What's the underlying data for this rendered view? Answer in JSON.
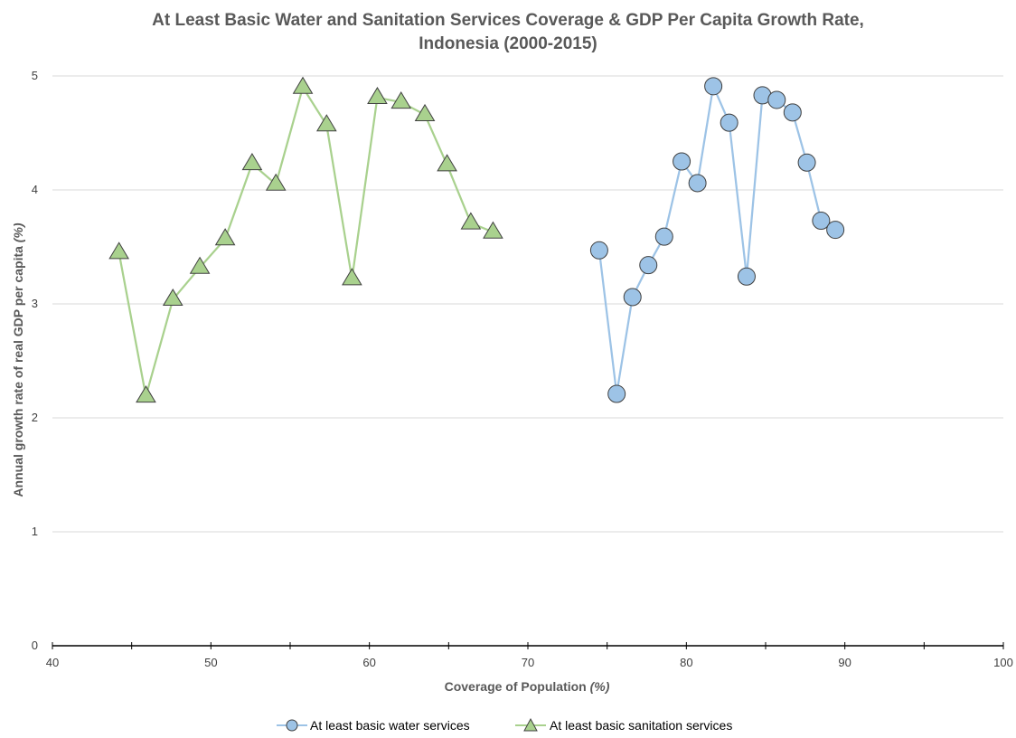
{
  "chart_data": {
    "type": "scatter",
    "title_lines": [
      "At Least Basic Water and Sanitation Services Coverage & GDP Per Capita Growth Rate,",
      "Indonesia (2000-2015)"
    ],
    "xlabel": "Coverage of Population",
    "xlabel_unit": "(%)",
    "ylabel": "Annual growth rate of real GDP per capita",
    "ylabel_unit": "(%)",
    "xlim": [
      40,
      100
    ],
    "ylim": [
      0,
      5
    ],
    "x_ticks": [
      40,
      50,
      60,
      70,
      80,
      90,
      100
    ],
    "y_ticks": [
      0,
      1,
      2,
      3,
      4,
      5
    ],
    "grid": "horizontal",
    "legend_position": "bottom",
    "series": [
      {
        "name": "At least basic water services",
        "marker": "circle",
        "color": "#9DC3E6",
        "fill": "#9DC3E6",
        "x": [
          74.5,
          75.6,
          76.6,
          77.6,
          78.6,
          79.7,
          80.7,
          81.7,
          82.7,
          83.8,
          84.8,
          85.7,
          86.7,
          87.6,
          88.5,
          89.4
        ],
        "y": [
          3.47,
          2.21,
          3.06,
          3.34,
          3.59,
          4.25,
          4.06,
          4.91,
          4.59,
          3.24,
          4.83,
          4.79,
          4.68,
          4.24,
          3.73,
          3.65
        ]
      },
      {
        "name": "At least basic sanitation services",
        "marker": "triangle",
        "color": "#A9D18E",
        "fill": "#A9D18E",
        "x": [
          44.2,
          45.9,
          47.6,
          49.3,
          50.9,
          52.6,
          54.1,
          55.8,
          57.3,
          58.9,
          60.5,
          62.0,
          63.5,
          64.9,
          66.4,
          67.8
        ],
        "y": [
          3.45,
          2.19,
          3.04,
          3.32,
          3.57,
          4.23,
          4.05,
          4.9,
          4.57,
          3.22,
          4.81,
          4.77,
          4.66,
          4.22,
          3.71,
          3.63
        ]
      }
    ]
  }
}
